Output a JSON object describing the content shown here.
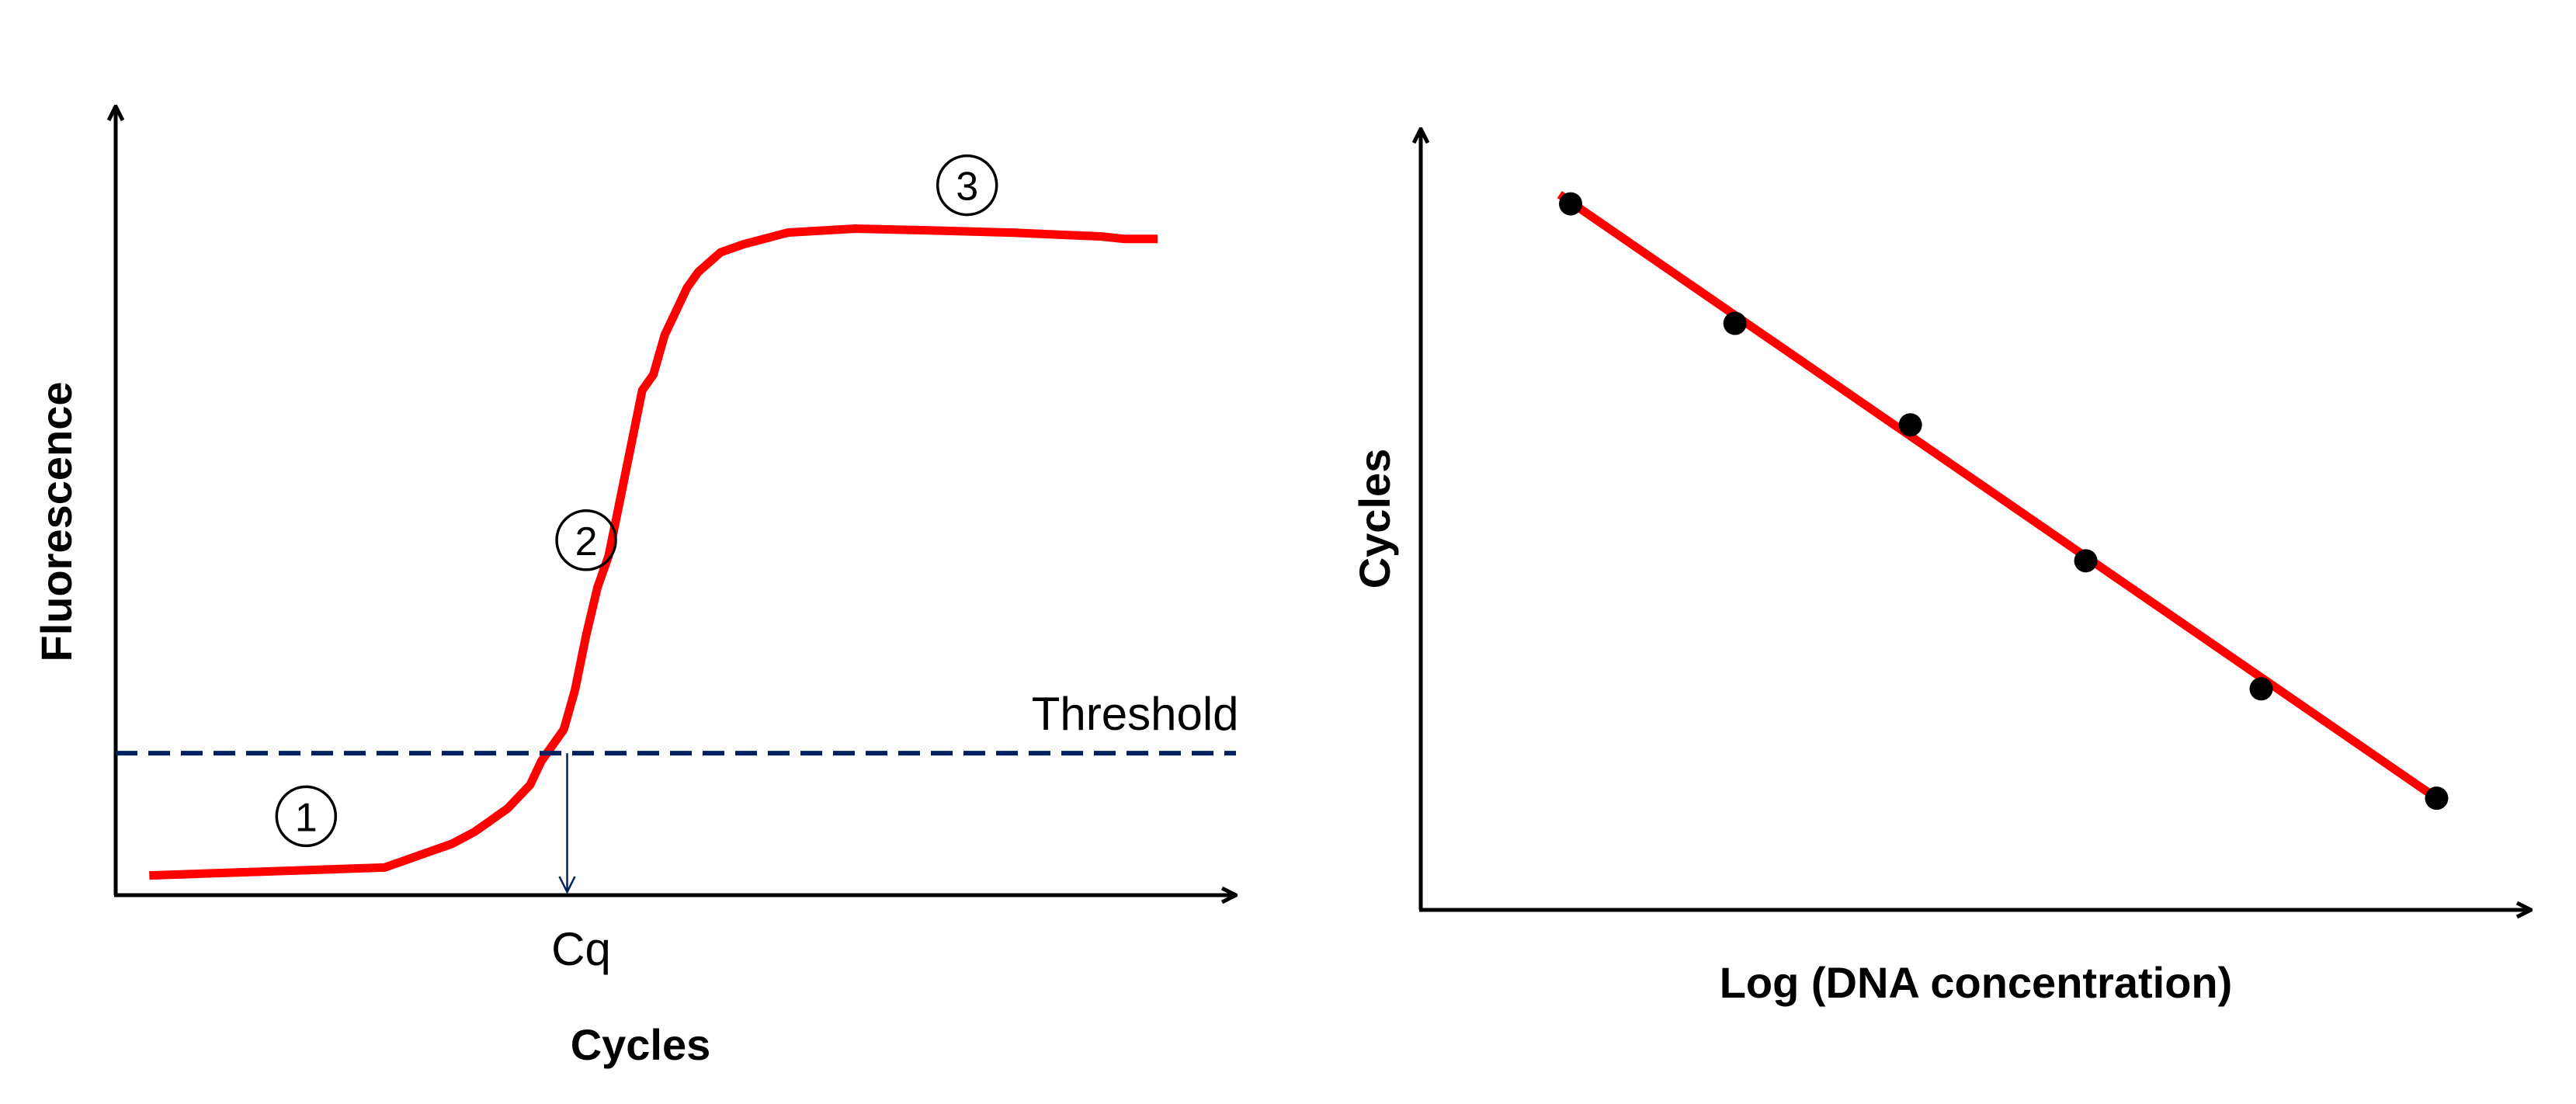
{
  "chart_data": [
    {
      "type": "line",
      "title": "",
      "xlabel": "Cycles",
      "ylabel": "Fluorescence",
      "xlim": [
        0,
        100
      ],
      "ylim": [
        0,
        100
      ],
      "series": [
        {
          "color": "#ff0000",
          "x": [
            3,
            24,
            26,
            28,
            30,
            32,
            33,
            35,
            37,
            38,
            40,
            41,
            42,
            43,
            44,
            45,
            46,
            47,
            48,
            49,
            50,
            51,
            52,
            54,
            56,
            60,
            66,
            72,
            80,
            88,
            90,
            93
          ],
          "y": [
            2.5,
            3.5,
            4.5,
            5.5,
            6.5,
            8,
            9,
            11,
            14,
            17,
            21,
            26,
            33,
            39,
            43,
            50,
            57,
            64,
            66,
            71,
            74,
            77,
            79,
            81.5,
            82.5,
            84,
            84.5,
            84.3,
            84,
            83.5,
            83.2,
            83.2
          ]
        }
      ],
      "threshold": {
        "label": "Threshold",
        "y": 18,
        "color": "#002060"
      },
      "cq": {
        "label": "Cq",
        "x": 40.3
      },
      "phase_markers": [
        {
          "label": "①",
          "x": 17,
          "y": 10
        },
        {
          "label": "②",
          "x": 42,
          "y": 45
        },
        {
          "label": "③",
          "x": 76,
          "y": 90
        }
      ]
    },
    {
      "type": "scatter",
      "title": "",
      "xlabel": "Log (DNA concentration)",
      "ylabel": "Cycles",
      "xlim": [
        0,
        100
      ],
      "ylim": [
        0,
        100
      ],
      "series": [
        {
          "color": "#000000",
          "x": [
            13.5,
            28.3,
            44.1,
            59.9,
            75.7,
            91.5
          ],
          "y": [
            90.4,
            75.1,
            62.1,
            44.7,
            28.3,
            14.3
          ]
        }
      ],
      "fit_line": {
        "color": "#ff0000",
        "x": [
          12.5,
          91.5
        ],
        "y": [
          91.6,
          14.3
        ]
      }
    }
  ]
}
